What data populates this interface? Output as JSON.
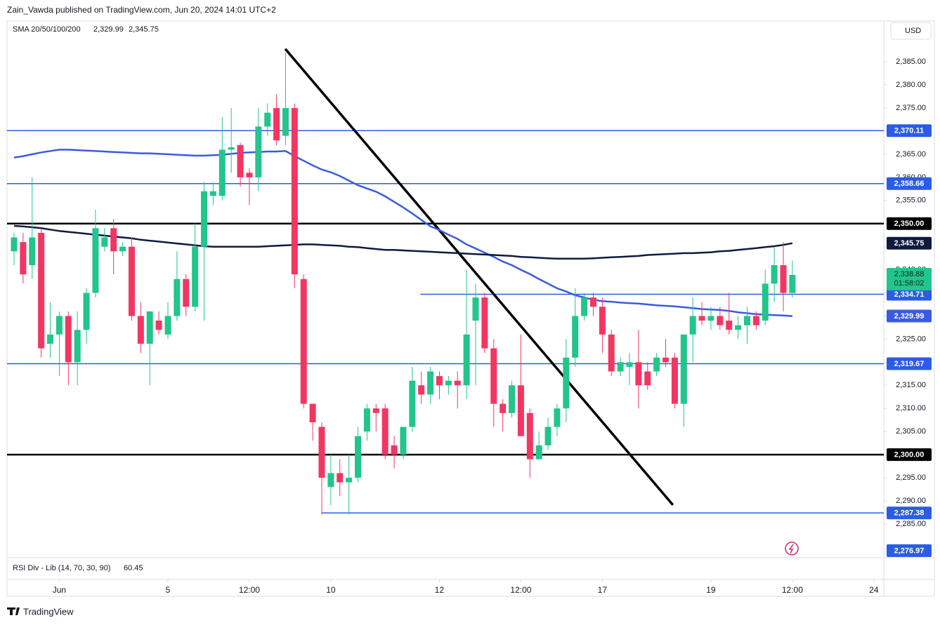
{
  "header": {
    "byline": "Zain_Vawda published on TradingView.com, Jun 20, 2024 14:01 UTC+2",
    "currency": "USD",
    "indicator": "RSI Div - Lib (14, 70, 30, 90)",
    "indicator_value": "60.45",
    "brand": "TradingView"
  },
  "chart_data": {
    "type": "candlestick",
    "xlim": [
      -0.776,
      96.1
    ],
    "xticks": [
      {
        "value": 5,
        "label": "Jun"
      },
      {
        "value": 17,
        "label": "5"
      },
      {
        "value": 26,
        "label": "12:00"
      },
      {
        "value": 35,
        "label": "10"
      },
      {
        "value": 47,
        "label": "12"
      },
      {
        "value": 56,
        "label": "12:00"
      },
      {
        "value": 65,
        "label": "17"
      },
      {
        "value": 77,
        "label": "19"
      },
      {
        "value": 86,
        "label": "12:00"
      },
      {
        "value": 95,
        "label": "24"
      }
    ],
    "ylim": [
      2277.7,
      2390.8
    ],
    "yticks": [
      {
        "value": 2285,
        "label": "2,285.00"
      },
      {
        "value": 2290,
        "label": "2,290.00"
      },
      {
        "value": 2295,
        "label": "2,295.00"
      },
      {
        "value": 2300,
        "label": "2,300.00"
      },
      {
        "value": 2305,
        "label": "2,305.00"
      },
      {
        "value": 2310,
        "label": "2,310.00"
      },
      {
        "value": 2315,
        "label": "2,315.00"
      },
      {
        "value": 2320,
        "label": "2,320.00"
      },
      {
        "value": 2325,
        "label": "2,325.00"
      },
      {
        "value": 2330,
        "label": "2,330.00"
      },
      {
        "value": 2335,
        "label": "2,335.00"
      },
      {
        "value": 2340,
        "label": "2,340.00"
      },
      {
        "value": 2345,
        "label": "2,345.00"
      },
      {
        "value": 2350,
        "label": "2,350.00"
      },
      {
        "value": 2355,
        "label": "2,355.00"
      },
      {
        "value": 2360,
        "label": "2,360.00"
      },
      {
        "value": 2365,
        "label": "2,365.00"
      },
      {
        "value": 2370,
        "label": "2,370.00"
      },
      {
        "value": 2375,
        "label": "2,375.00"
      },
      {
        "value": 2380,
        "label": "2,380.00"
      },
      {
        "value": 2385,
        "label": "2,385.00"
      }
    ],
    "up_color": "#22c58b",
    "down_color": "#f23662",
    "open": [
      2344,
      2346,
      2341,
      2348,
      2324,
      2326,
      2330,
      2320,
      2327,
      2335,
      2345,
      2349,
      2344,
      2345,
      2330,
      2324,
      2329,
      2326,
      2330,
      2338,
      2332,
      2345,
      2356,
      2356,
      2366,
      2367,
      2361,
      2360,
      2371,
      2375,
      2369,
      2375,
      2338,
      2311,
      2306,
      2293,
      2296,
      2294,
      2295,
      2305,
      2310,
      2310,
      2302,
      2300,
      2306,
      2315,
      2313,
      2317,
      2315,
      2316,
      2315,
      2329,
      2334,
      2323,
      2311,
      2309,
      2315,
      2309,
      2299,
      2302,
      2306,
      2310,
      2321,
      2330,
      2334,
      2332,
      2326,
      2318,
      2319,
      2320,
      2318,
      2318,
      2321,
      2321,
      2311,
      2326,
      2330,
      2329,
      2330,
      2329,
      2327,
      2328,
      2330,
      2329,
      2337,
      2341,
      2335
    ],
    "high": [
      2348,
      2348,
      2360,
      2349,
      2333,
      2331,
      2331,
      2331,
      2336,
      2353,
      2349,
      2351,
      2346,
      2347,
      2333,
      2331,
      2331,
      2333,
      2344,
      2339,
      2350,
      2359,
      2359,
      2373,
      2375,
      2367.5,
      2362,
      2375,
      2376,
      2378,
      2387,
      2376,
      2339,
      2311,
      2307,
      2300,
      2299,
      2300,
      2306,
      2311,
      2311,
      2311,
      2304,
      2306,
      2319,
      2318,
      2319,
      2318,
      2317,
      2318,
      2340,
      2337,
      2335,
      2325,
      2312,
      2316,
      2326,
      2310,
      2305,
      2308,
      2311,
      2325,
      2336,
      2335,
      2335,
      2334,
      2327,
      2321,
      2322,
      2327,
      2320,
      2322,
      2325,
      2322,
      2326,
      2334,
      2333,
      2332,
      2332,
      2335,
      2330,
      2332,
      2331,
      2340,
      2345,
      2346,
      2342
    ],
    "low": [
      2341,
      2337,
      2338,
      2321,
      2321,
      2317,
      2315,
      2315,
      2324,
      2334,
      2344,
      2339,
      2343,
      2329,
      2322,
      2315,
      2326,
      2325,
      2329,
      2330,
      2331,
      2329,
      2354,
      2355,
      2361,
      2358,
      2354,
      2357,
      2369,
      2367,
      2367,
      2336,
      2310,
      2303,
      2287,
      2289,
      2291,
      2287,
      2294,
      2303,
      2305,
      2299,
      2297,
      2299,
      2305,
      2311,
      2311,
      2312,
      2313,
      2310,
      2312,
      2315,
      2322,
      2306,
      2305,
      2308,
      2304,
      2295,
      2299,
      2301,
      2304,
      2307,
      2319,
      2329,
      2330,
      2322,
      2317,
      2317,
      2315,
      2310,
      2314,
      2317,
      2319,
      2310,
      2306,
      2320,
      2328,
      2327,
      2327,
      2326,
      2325,
      2324,
      2327,
      2328,
      2333,
      2331,
      2334
    ],
    "close": [
      2347,
      2339,
      2347,
      2323,
      2326,
      2330,
      2320,
      2327,
      2335,
      2349,
      2347,
      2344,
      2345,
      2330,
      2324,
      2331,
      2327,
      2330,
      2338,
      2332,
      2345,
      2357,
      2357,
      2366,
      2366.5,
      2360,
      2360,
      2371,
      2374,
      2368,
      2375,
      2339,
      2311,
      2307,
      2295,
      2296,
      2294,
      2295,
      2304,
      2310,
      2309,
      2300,
      2300,
      2306,
      2316,
      2313,
      2318,
      2315,
      2316,
      2315,
      2326,
      2334,
      2323,
      2311,
      2309,
      2315,
      2304,
      2299,
      2302,
      2306,
      2310,
      2321,
      2330,
      2334,
      2332,
      2326,
      2318,
      2320,
      2320,
      2315,
      2315,
      2321,
      2320,
      2311,
      2326,
      2330,
      2329,
      2330,
      2328,
      2327,
      2328,
      2330,
      2328,
      2337,
      2341,
      2335,
      2338.88
    ],
    "last_price_label": "2,338.88",
    "countdown": "01:58:02",
    "sma_title": "SMA 20/50/100/200",
    "sma": [
      {
        "color": "#3a5be0",
        "value_label": "2,329.99",
        "values": [
          2364.3,
          2364.6,
          2365.0,
          2365.4,
          2365.7,
          2366.0,
          2366.0,
          2365.9,
          2365.8,
          2365.7,
          2365.6,
          2365.5,
          2365.4,
          2365.3,
          2365.2,
          2365.2,
          2365.1,
          2365.0,
          2364.9,
          2364.8,
          2364.7,
          2364.7,
          2364.8,
          2364.9,
          2365.1,
          2365.3,
          2365.4,
          2365.5,
          2365.6,
          2365.6,
          2365.7,
          2364.6,
          2363.6,
          2362.6,
          2361.7,
          2361.1,
          2360.3,
          2359.3,
          2358.3,
          2357.6,
          2356.9,
          2355.9,
          2354.7,
          2353.5,
          2352.2,
          2350.8,
          2349.4,
          2348.6,
          2347.6,
          2346.7,
          2345.5,
          2344.6,
          2343.7,
          2342.8,
          2341.8,
          2341.0,
          2340.0,
          2339.1,
          2338.0,
          2337.0,
          2336.0,
          2335.3,
          2334.5,
          2334.0,
          2333.5,
          2333.2,
          2333.1,
          2332.9,
          2332.8,
          2332.7,
          2332.5,
          2332.3,
          2332.2,
          2332.1,
          2331.9,
          2331.7,
          2331.5,
          2331.4,
          2331.3,
          2331.1,
          2330.8,
          2330.6,
          2330.4,
          2330.3,
          2330.2,
          2330.1,
          2329.99
        ]
      },
      {
        "color": "#0f1a3f",
        "value_label": "2,345.75",
        "values": [
          2349.5,
          2349.4,
          2349.2,
          2349.0,
          2348.7,
          2348.4,
          2348.2,
          2348.0,
          2347.8,
          2347.6,
          2347.4,
          2347.2,
          2347.0,
          2346.8,
          2346.5,
          2346.3,
          2346.1,
          2345.9,
          2345.7,
          2345.5,
          2345.3,
          2345.1,
          2345.0,
          2345.0,
          2345.0,
          2345.0,
          2345.0,
          2345.0,
          2345.1,
          2345.2,
          2345.3,
          2345.4,
          2345.5,
          2345.5,
          2345.4,
          2345.3,
          2345.2,
          2345.0,
          2344.9,
          2344.7,
          2344.5,
          2344.3,
          2344.3,
          2344.2,
          2344.1,
          2344.0,
          2343.9,
          2343.8,
          2343.7,
          2343.6,
          2343.5,
          2343.4,
          2343.3,
          2343.2,
          2343.1,
          2343.0,
          2342.8,
          2342.7,
          2342.6,
          2342.5,
          2342.4,
          2342.4,
          2342.4,
          2342.4,
          2342.5,
          2342.6,
          2342.7,
          2342.8,
          2342.9,
          2343.0,
          2343.2,
          2343.3,
          2343.4,
          2343.5,
          2343.6,
          2343.6,
          2343.7,
          2343.8,
          2344.0,
          2344.1,
          2344.3,
          2344.5,
          2344.7,
          2344.9,
          2345.1,
          2345.4,
          2345.75
        ]
      }
    ],
    "levels": [
      {
        "value": 2370.11,
        "label": "2,370.11",
        "color": "#2b5ce6"
      },
      {
        "value": 2358.66,
        "label": "2,358.66",
        "color": "#2b5ce6"
      },
      {
        "value": 2350.0,
        "label": "2,350.00",
        "color": "#000000"
      },
      {
        "value": 2334.71,
        "label": "2,334.71",
        "color": "#2b5ce6",
        "start": 44.9
      },
      {
        "value": 2319.67,
        "label": "2,319.67",
        "color": "#2b5ce6"
      },
      {
        "value": 2300.0,
        "label": "2,300.00",
        "color": "#000000"
      },
      {
        "value": 2287.38,
        "label": "2,287.38",
        "color": "#2b5ce6",
        "start": 34
      }
    ],
    "markers": [
      {
        "value": 2276.97,
        "label": "2,276.97",
        "color": "#2b5ce6"
      }
    ],
    "trendline": {
      "color": "#000000",
      "x": [
        29.97,
        72.8
      ],
      "y": [
        2387.8,
        2289.1
      ]
    }
  }
}
